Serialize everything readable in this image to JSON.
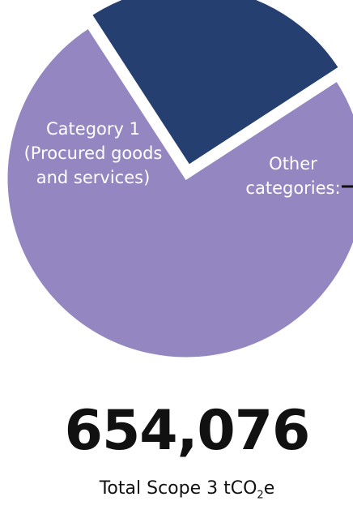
{
  "chart_data": {
    "type": "pie",
    "title": "",
    "slices": [
      {
        "label_lines": [
          "Category 1",
          "(Procured goods",
          "and services)"
        ],
        "value": 75,
        "color": "#9487c1"
      },
      {
        "label_lines": [
          "Other",
          "categories:"
        ],
        "value": 25,
        "color": "#243f70"
      }
    ],
    "total": {
      "value": "654,076",
      "caption_prefix": "Total Scope 3 tCO",
      "caption_sub": "2",
      "caption_suffix": "e"
    }
  }
}
